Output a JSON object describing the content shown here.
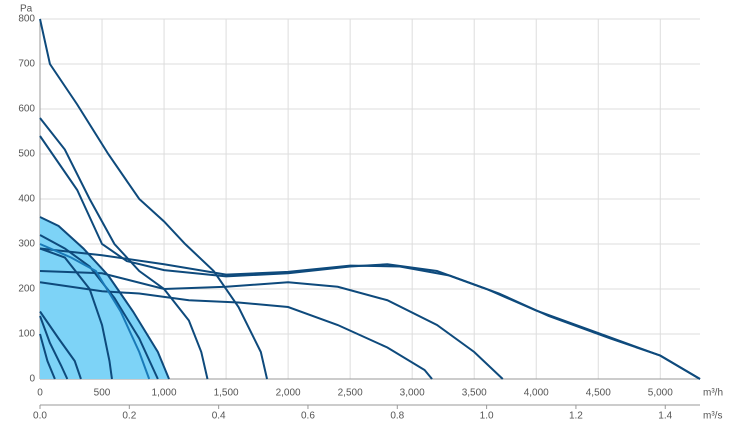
{
  "chart_data": {
    "type": "line",
    "y_label": "Pa",
    "x_label": "m³/h",
    "x2_label": "m³/s",
    "xlim": [
      0,
      5320
    ],
    "ylim": [
      0,
      800
    ],
    "x2lim": [
      0,
      1.4778
    ],
    "xticks": [
      0,
      500,
      {
        "value": 1000,
        "label": "1,000"
      },
      {
        "value": 1500,
        "label": "1,500"
      },
      {
        "value": 2000,
        "label": "2,000"
      },
      {
        "value": 2500,
        "label": "2,500"
      },
      {
        "value": 3000,
        "label": "3,000"
      },
      {
        "value": 3500,
        "label": "3,500"
      },
      {
        "value": 4000,
        "label": "4,000"
      },
      {
        "value": 4500,
        "label": "4,500"
      },
      {
        "value": 5000,
        "label": "5,000"
      }
    ],
    "x2ticks": [
      {
        "value": 0,
        "label": "0.0"
      },
      0.2,
      0.4,
      0.6,
      0.8,
      {
        "value": 1,
        "label": "1.0"
      },
      1.2,
      1.4
    ],
    "yticks": [
      0,
      100,
      200,
      300,
      400,
      500,
      600,
      700,
      800
    ],
    "grid": true,
    "series": [
      {
        "color": "#0e4a7c",
        "fill": "#7dd3f7",
        "x": [
          0,
          150,
          350,
          550,
          750,
          950,
          1040
        ],
        "values": [
          360,
          340,
          290,
          230,
          150,
          60,
          0
        ]
      },
      {
        "color": "#0e4a7c",
        "x": [
          0,
          80,
          300,
          550,
          800,
          1000,
          1170,
          1400,
          1600,
          1780,
          1830
        ],
        "values": [
          800,
          700,
          610,
          500,
          400,
          350,
          300,
          240,
          160,
          60,
          0
        ]
      },
      {
        "color": "#0e4a7c",
        "x": [
          0,
          200,
          400,
          600,
          800,
          1000,
          1200,
          1300,
          1350
        ],
        "values": [
          580,
          510,
          400,
          300,
          240,
          200,
          130,
          60,
          0
        ]
      },
      {
        "color": "#0e4a7c",
        "x": [
          0,
          300,
          500,
          700,
          1000,
          1500,
          2000,
          2500,
          2800,
          3200,
          3600,
          4000,
          4500,
          5000,
          5320
        ],
        "values": [
          540,
          420,
          300,
          262,
          242,
          228,
          235,
          250,
          255,
          240,
          200,
          152,
          102,
          52,
          0
        ]
      },
      {
        "color": "#0e4a7c",
        "x": [
          0,
          500,
          1000,
          1500,
          2000,
          2500,
          2900,
          3300,
          3700,
          4100,
          4600,
          5000,
          5320
        ],
        "values": [
          290,
          275,
          255,
          232,
          238,
          252,
          250,
          230,
          190,
          140,
          90,
          52,
          0
        ]
      },
      {
        "color": "#0e4a7c",
        "x": [
          0,
          500,
          1000,
          1500,
          2000,
          2400,
          2800,
          3200,
          3500,
          3730
        ],
        "values": [
          240,
          235,
          200,
          205,
          215,
          205,
          175,
          120,
          60,
          0
        ]
      },
      {
        "color": "#0e4a7c",
        "x": [
          0,
          500,
          800,
          1200,
          1600,
          2000,
          2400,
          2800,
          3100,
          3160
        ],
        "values": [
          215,
          195,
          190,
          175,
          170,
          160,
          120,
          70,
          20,
          0
        ]
      },
      {
        "color": "#0e4a7c",
        "x": [
          0,
          200,
          400,
          600,
          800,
          950
        ],
        "values": [
          320,
          290,
          250,
          180,
          90,
          0
        ]
      },
      {
        "color": "#1a7ab8",
        "x": [
          0,
          250,
          450,
          650,
          800,
          880
        ],
        "values": [
          300,
          270,
          240,
          150,
          60,
          0
        ]
      },
      {
        "color": "#0e4a7c",
        "x": [
          0,
          200,
          400,
          500,
          560,
          580
        ],
        "values": [
          290,
          270,
          200,
          120,
          40,
          0
        ]
      },
      {
        "color": "#0e4a7c",
        "x": [
          0,
          150,
          280,
          330
        ],
        "values": [
          150,
          90,
          40,
          0
        ]
      },
      {
        "color": "#0e4a7c",
        "x": [
          0,
          80,
          170,
          220
        ],
        "values": [
          140,
          80,
          30,
          0
        ]
      },
      {
        "color": "#0e4a7c",
        "x": [
          0,
          60,
          120
        ],
        "values": [
          100,
          40,
          0
        ]
      }
    ]
  }
}
